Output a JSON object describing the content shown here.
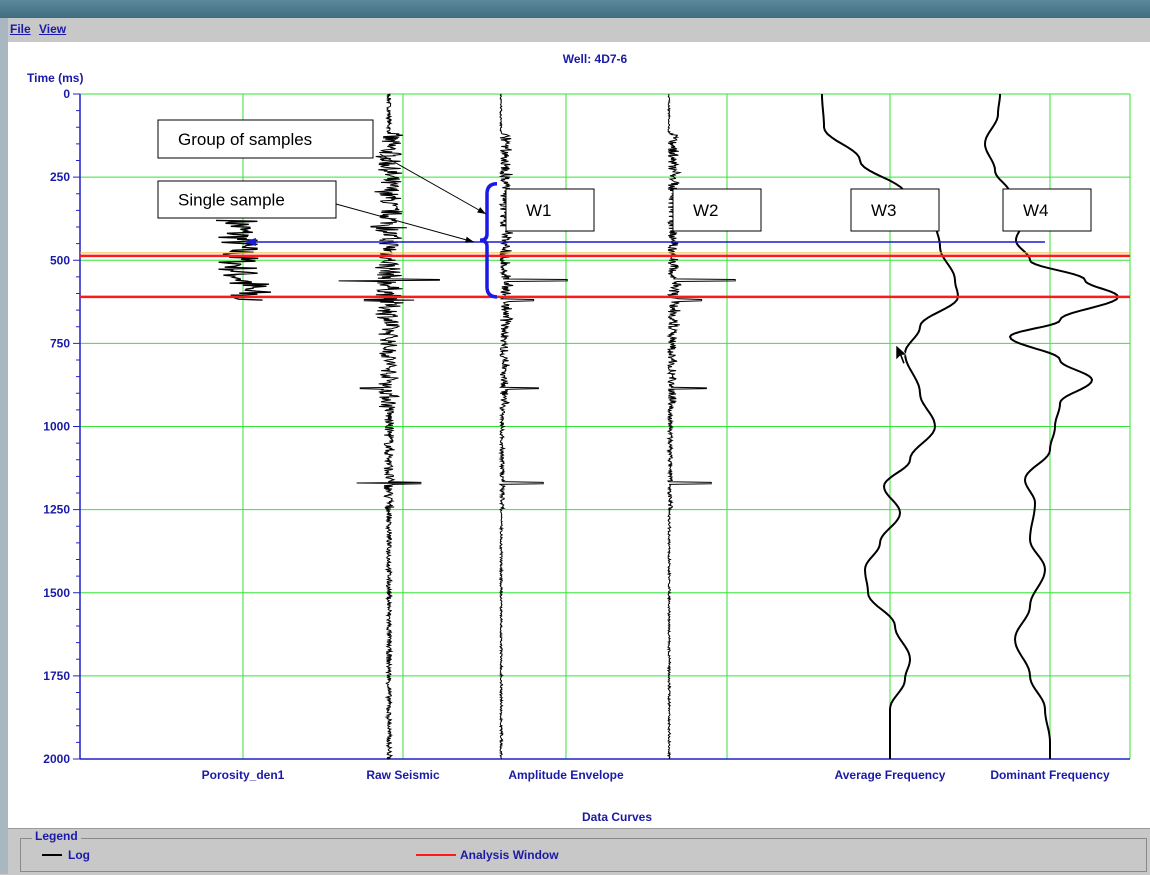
{
  "menu": {
    "file": "File",
    "view": "View"
  },
  "colors": {
    "grid": "#33e633",
    "axis": "#2121c8",
    "curve": "#000000",
    "window": "#ff1a1a",
    "annotation": "#1a1aa6",
    "marker": "#1a1ad2",
    "bracket": "#1a1ae6"
  },
  "chart_data": {
    "type": "line",
    "title": "Well: 4D7-6",
    "ylabel": "Time (ms)",
    "xlabel": "Data Curves",
    "ylim": [
      0,
      2000
    ],
    "y_reversed": true,
    "y_ticks": [
      0,
      250,
      500,
      750,
      1000,
      1250,
      1500,
      1750,
      2000
    ],
    "grid": true,
    "tracks": [
      "Porosity_den1",
      "Raw Seismic",
      "Amplitude Envelope",
      "",
      "Average Frequency",
      "Dominant Frequency"
    ],
    "series": [
      {
        "track": "Porosity_den1",
        "style": "log",
        "range": [
          380,
          620
        ]
      },
      {
        "track": "Raw Seismic",
        "style": "wiggle",
        "range": [
          0,
          2000
        ]
      },
      {
        "track": "Amplitude Envelope",
        "style": "envelope",
        "range": [
          0,
          2000
        ]
      },
      {
        "track": "",
        "style": "envelope",
        "range": [
          0,
          2000
        ]
      },
      {
        "track": "Average Frequency",
        "style": "smooth",
        "range": [
          0,
          2000
        ]
      },
      {
        "track": "Dominant Frequency",
        "style": "smooth",
        "range": [
          0,
          2000
        ]
      }
    ],
    "analysis_window": [
      487,
      610
    ],
    "single_sample_time": 445,
    "group_bracket": [
      270,
      610
    ],
    "legend": [
      {
        "label": "Log",
        "color": "#000000"
      },
      {
        "label": "Analysis Window",
        "color": "#ff1a1a"
      }
    ],
    "legend_title": "Legend",
    "annotations": {
      "group": "Group of samples",
      "single": "Single sample",
      "windows": [
        "W1",
        "W2",
        "W3",
        "W4"
      ]
    }
  }
}
